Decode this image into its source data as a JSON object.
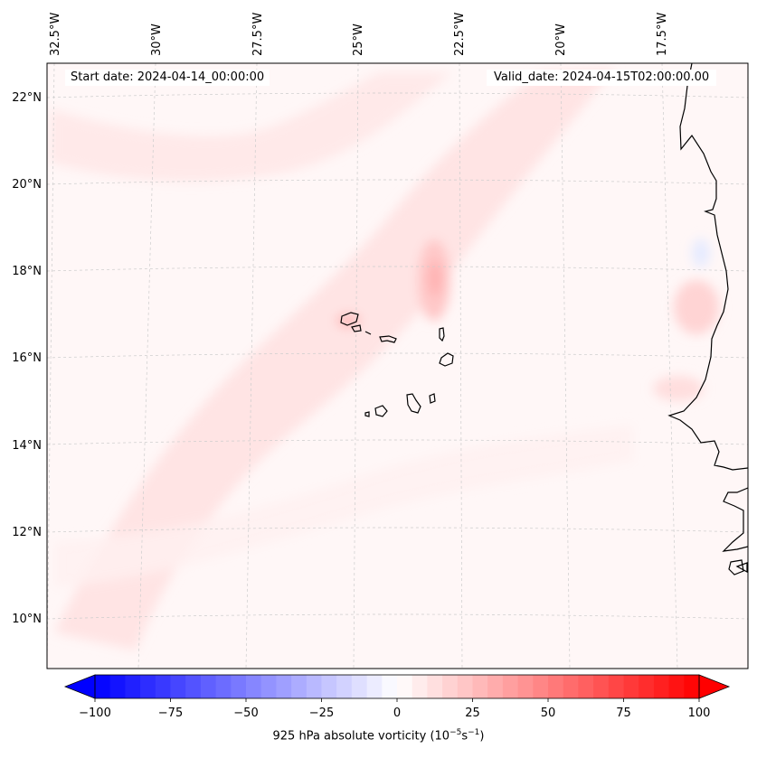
{
  "map": {
    "start_label": "Start date: 2024-04-14_00:00:00",
    "valid_label": "Valid_date: 2024-04-15T02:00:00.00",
    "longitude_labels": [
      "32.5°W",
      "30°W",
      "27.5°W",
      "25°W",
      "22.5°W",
      "20°W",
      "17.5°W"
    ],
    "latitude_labels": [
      "22°N",
      "20°N",
      "18°N",
      "16°N",
      "14°N",
      "12°N",
      "10°N"
    ],
    "gridlines": true,
    "colormap": "bwr"
  },
  "colorbar": {
    "ticks": [
      "−100",
      "−75",
      "−50",
      "−25",
      "0",
      "25",
      "50",
      "75",
      "100"
    ],
    "range": [
      -100,
      100
    ],
    "step": 5,
    "label_prefix": "925 hPa absolute vorticity (10",
    "label_exp1": "−5",
    "label_mid": "s",
    "label_exp2": "−1",
    "label_suffix": ")",
    "extend": "both"
  },
  "colors": {
    "negative": "#0000ff",
    "positive": "#ff0000",
    "coastline": "#000000",
    "grid": "#cccccc"
  }
}
